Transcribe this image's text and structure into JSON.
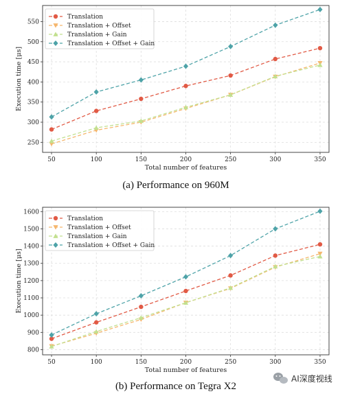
{
  "colors": {
    "translation": "#e15a45",
    "offset": "#f5b66d",
    "gain": "#c2e08f",
    "offset_gain": "#4ea3a8",
    "grid": "#dddddd"
  },
  "watermark": {
    "icon": "wechat-icon",
    "text": "AI深度视线"
  },
  "chart_data": [
    {
      "type": "line",
      "caption": "(a)  Performance on 960M",
      "xlabel": "Total number of features",
      "ylabel": "Execution time [μs]",
      "x": [
        50,
        100,
        150,
        200,
        250,
        300,
        350
      ],
      "xlim": [
        40,
        360
      ],
      "ylim": [
        225,
        590
      ],
      "yticks": [
        250,
        300,
        350,
        400,
        450,
        500,
        550
      ],
      "grid": true,
      "legend_position": "top-left",
      "series": [
        {
          "name": "Translation",
          "marker": "circle",
          "color_key": "translation",
          "values": [
            282,
            328,
            358,
            390,
            416,
            457,
            484
          ]
        },
        {
          "name": "Translation + Offset",
          "marker": "triangle-down",
          "color_key": "offset",
          "values": [
            246,
            280,
            300,
            334,
            368,
            413,
            447
          ]
        },
        {
          "name": "Translation + Gain",
          "marker": "triangle-up",
          "color_key": "gain",
          "values": [
            253,
            286,
            303,
            337,
            368,
            414,
            442
          ]
        },
        {
          "name": "Translation + Offset + Gain",
          "marker": "diamond",
          "color_key": "offset_gain",
          "values": [
            313,
            375,
            405,
            439,
            488,
            541,
            580
          ]
        }
      ]
    },
    {
      "type": "line",
      "caption": "(b)  Performance on Tegra X2",
      "xlabel": "Total number of features",
      "ylabel": "Execution time [μs]",
      "x": [
        50,
        100,
        150,
        200,
        250,
        300,
        350
      ],
      "xlim": [
        40,
        360
      ],
      "ylim": [
        770,
        1625
      ],
      "yticks": [
        800,
        900,
        1000,
        1100,
        1200,
        1300,
        1400,
        1500,
        1600
      ],
      "grid": true,
      "legend_position": "top-left",
      "series": [
        {
          "name": "Translation",
          "marker": "circle",
          "color_key": "translation",
          "values": [
            863,
            958,
            1048,
            1140,
            1230,
            1345,
            1410
          ]
        },
        {
          "name": "Translation + Offset",
          "marker": "triangle-down",
          "color_key": "offset",
          "values": [
            820,
            895,
            975,
            1072,
            1155,
            1278,
            1356
          ]
        },
        {
          "name": "Translation + Gain",
          "marker": "triangle-up",
          "color_key": "gain",
          "values": [
            818,
            905,
            985,
            1072,
            1158,
            1282,
            1340
          ]
        },
        {
          "name": "Translation + Offset + Gain",
          "marker": "diamond",
          "color_key": "offset_gain",
          "values": [
            885,
            1008,
            1112,
            1222,
            1345,
            1500,
            1602
          ]
        }
      ]
    }
  ]
}
